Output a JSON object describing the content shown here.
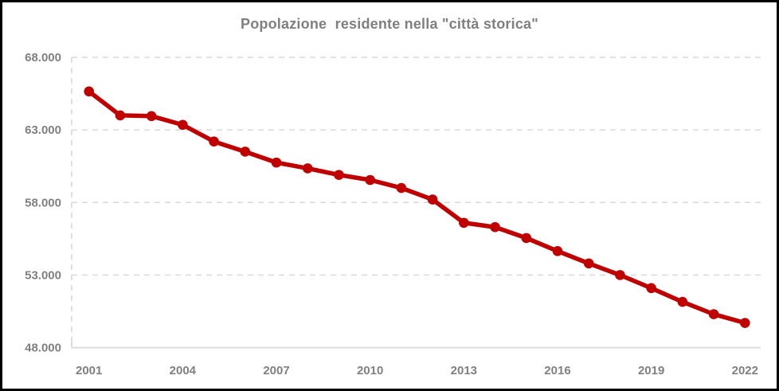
{
  "chart": {
    "title": "Popolazione  residente nella \"città storica\""
  },
  "chart_data": {
    "type": "line",
    "title": "Popolazione  residente nella \"città storica\"",
    "x": [
      2001,
      2002,
      2003,
      2004,
      2005,
      2006,
      2007,
      2008,
      2009,
      2010,
      2011,
      2012,
      2013,
      2014,
      2015,
      2016,
      2017,
      2018,
      2019,
      2020,
      2021,
      2022
    ],
    "values": [
      65650,
      64000,
      63950,
      63350,
      62200,
      61500,
      60750,
      60350,
      59900,
      59550,
      59000,
      58200,
      56600,
      56300,
      55550,
      54650,
      53800,
      53000,
      52100,
      51150,
      50300,
      49700
    ],
    "ylim": [
      48000,
      68000
    ],
    "y_ticks": [
      68000,
      63000,
      58000,
      53000,
      48000
    ],
    "y_tick_labels": [
      "68.000",
      "63.000",
      "58.000",
      "53.000",
      "48.000"
    ],
    "x_tick_years": [
      2001,
      2004,
      2007,
      2010,
      2013,
      2016,
      2019,
      2022
    ],
    "grid": "horizontal-dashed",
    "legend": "none",
    "marker": "circle",
    "colors": {
      "line": "#c00000",
      "marker": "#c00000",
      "grid": "#d9d9d9",
      "axis": "#d9d9d9",
      "tick_label": "#808080",
      "title": "#7f7f7f",
      "background": "#ffffff",
      "border": "#000000"
    }
  }
}
